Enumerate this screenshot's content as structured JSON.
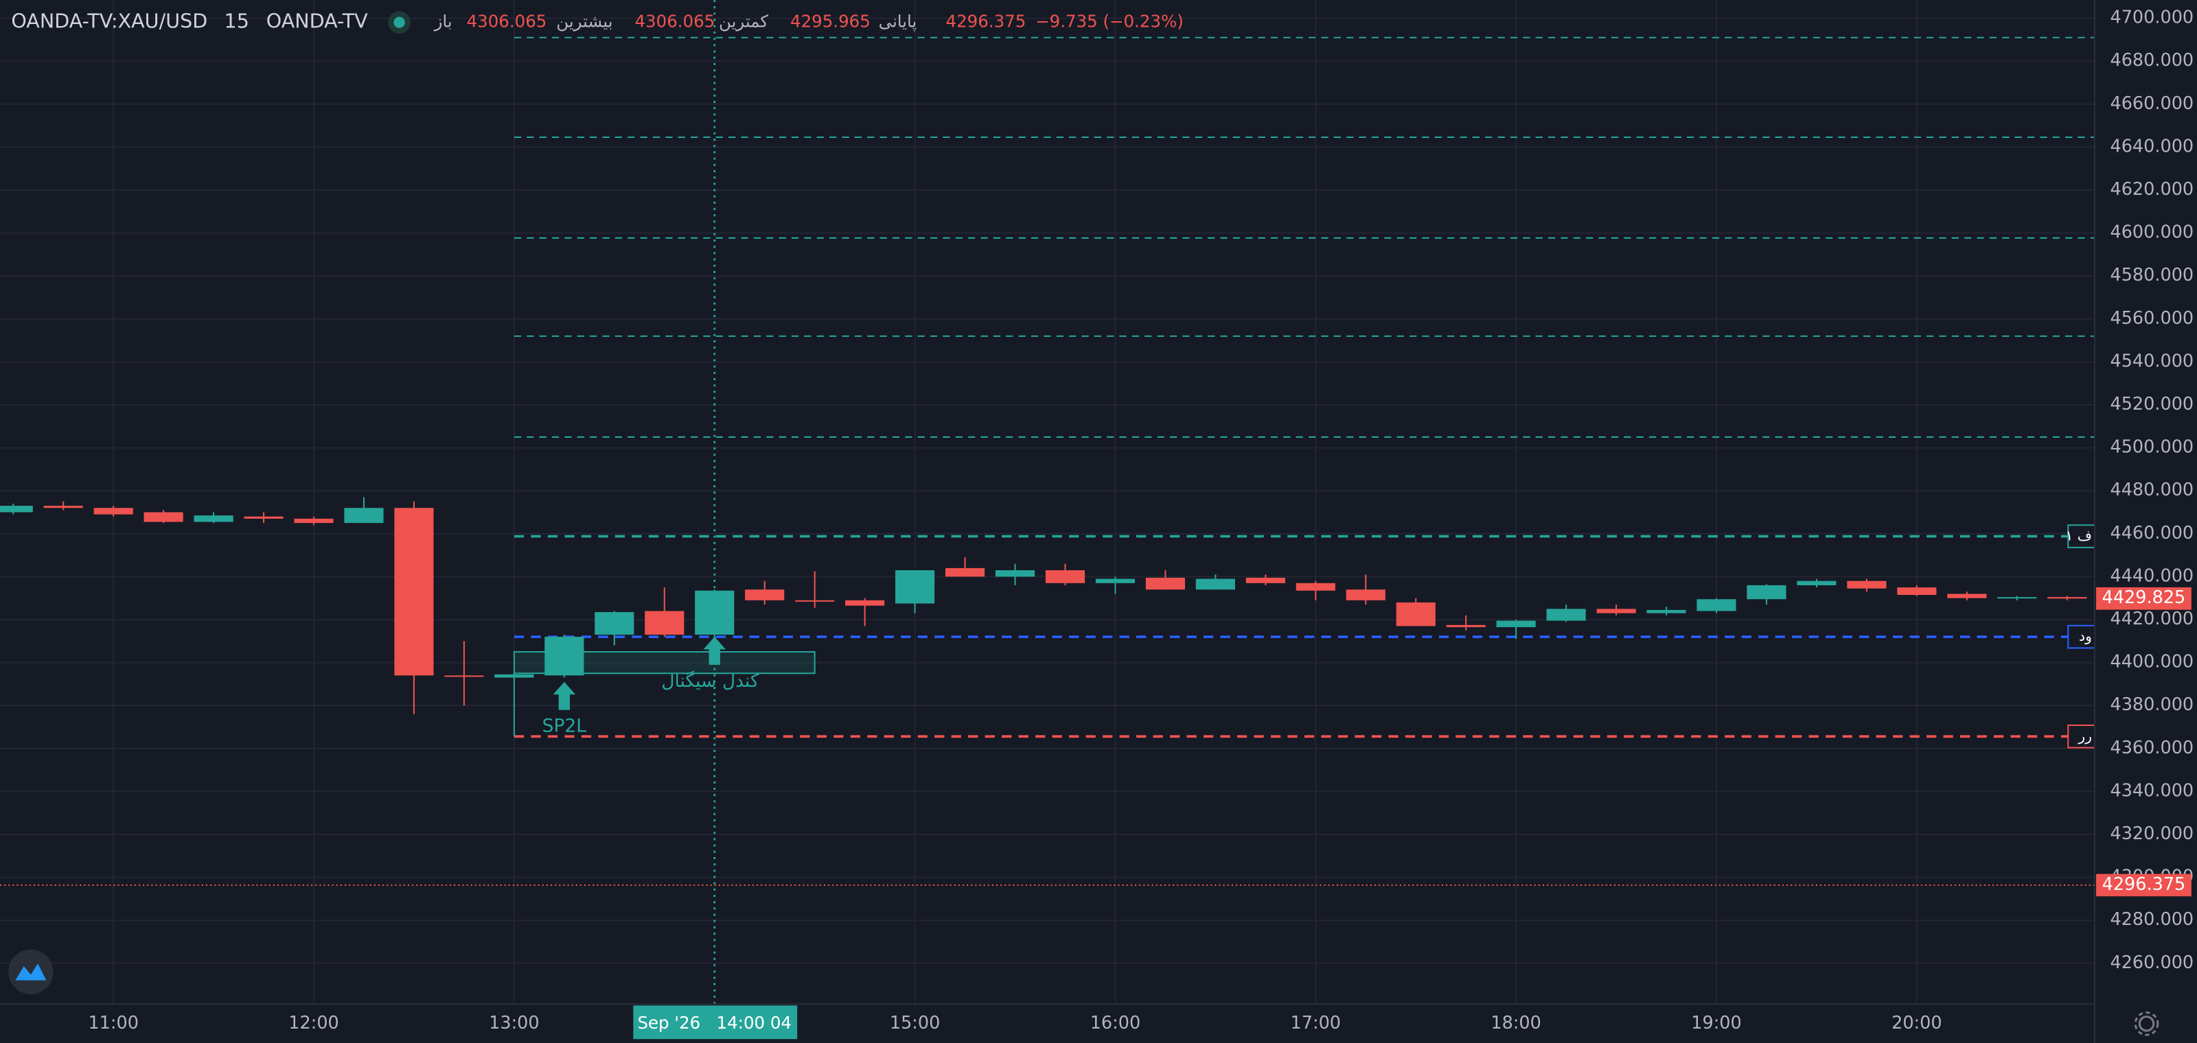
{
  "header": {
    "symbol": "OANDA-TV:XAU/USD",
    "interval": "15",
    "source": "OANDA-TV",
    "fields": [
      {
        "label": "باز",
        "value": "4306.065"
      },
      {
        "label": "بیشترین",
        "value": "4306.065"
      },
      {
        "label": "کمترین",
        "value": "4295.965"
      },
      {
        "label": "پایانی",
        "value": "4296.375"
      }
    ],
    "change": "−9.735 (−0.23%)"
  },
  "chart_data": {
    "type": "candlestick",
    "x": [
      10.5,
      10.75,
      11,
      11.25,
      11.5,
      11.75,
      12,
      12.25,
      12.5,
      12.75,
      13,
      13.25,
      13.5,
      13.75,
      14,
      14.25,
      14.5,
      14.75,
      15,
      15.25,
      15.5,
      15.75,
      16,
      16.25,
      16.5,
      16.75,
      17,
      17.25,
      17.5,
      17.75,
      18,
      18.25,
      18.5,
      18.75,
      19,
      19.25,
      19.5,
      19.75,
      20,
      20.25,
      20.5,
      20.75
    ],
    "open": [
      4470,
      4473,
      4472,
      4470,
      4465.5,
      4468,
      4467,
      4465,
      4472,
      4394,
      4393,
      4394,
      4413,
      4424,
      4413,
      4434,
      4429,
      4429,
      4427.5,
      4444,
      4440,
      4443,
      4437,
      4439.5,
      4434,
      4439.5,
      4437,
      4434,
      4428,
      4417.5,
      4416.5,
      4419.5,
      4425,
      4423,
      4424,
      4429.5,
      4436,
      4438,
      4435,
      4432,
      4430,
      4430.5
    ],
    "high": [
      4474,
      4475,
      4473,
      4471,
      4470,
      4470,
      4468,
      4477,
      4475,
      4410,
      4395,
      4413,
      4424,
      4435,
      4434,
      4438,
      4442.5,
      4430,
      4443,
      4449,
      4446,
      4446,
      4440,
      4443,
      4441,
      4441,
      4438,
      4441,
      4430,
      4422,
      4420,
      4427,
      4427,
      4426,
      4430,
      4436.5,
      4439,
      4439,
      4436,
      4433,
      4431,
      4431
    ],
    "low": [
      4469,
      4471,
      4468,
      4465,
      4465,
      4465,
      4464,
      4465,
      4376,
      4380,
      4393,
      4393,
      4408,
      4412,
      4412,
      4427,
      4425.5,
      4417,
      4423,
      4440,
      4436,
      4436,
      4432,
      4434,
      4434,
      4436,
      4429,
      4427,
      4417,
      4415,
      4411,
      4419,
      4422,
      4422,
      4423,
      4427,
      4435,
      4433,
      4431,
      4429,
      4429,
      4429
    ],
    "close": [
      4473,
      4472,
      4469,
      4465.5,
      4468.5,
      4467,
      4465,
      4472,
      4394,
      4393.5,
      4394.5,
      4412,
      4423.5,
      4413,
      4433.5,
      4429,
      4428.5,
      4426.5,
      4443,
      4440,
      4443,
      4437,
      4439,
      4434,
      4439,
      4437,
      4433.5,
      4429,
      4417,
      4416.5,
      4419.5,
      4425,
      4423,
      4424.5,
      4429.5,
      4436,
      4438,
      4434.5,
      4431.5,
      4430,
      4430.5,
      4429.8
    ],
    "up_color": "#26a69a",
    "down_color": "#ef5350",
    "xlim": [
      10.434,
      20.888
    ],
    "xticks": [
      {
        "value": 11,
        "label": "11:00"
      },
      {
        "value": 12,
        "label": "12:00"
      },
      {
        "value": 13,
        "label": "13:00"
      },
      {
        "value": 15,
        "label": "15:00"
      },
      {
        "value": 16,
        "label": "16:00"
      },
      {
        "value": 17,
        "label": "17:00"
      },
      {
        "value": 18,
        "label": "18:00"
      },
      {
        "value": 19,
        "label": "19:00"
      },
      {
        "value": 20,
        "label": "20:00"
      }
    ],
    "ylim": [
      4241,
      4708.5
    ],
    "yticks": [
      {
        "value": 4260,
        "label": "4260.000"
      },
      {
        "value": 4280,
        "label": "4280.000"
      },
      {
        "value": 4300,
        "label": "4300.000"
      },
      {
        "value": 4320,
        "label": "4320.000"
      },
      {
        "value": 4340,
        "label": "4340.000"
      },
      {
        "value": 4360,
        "label": "4360.000"
      },
      {
        "value": 4380,
        "label": "4380.000"
      },
      {
        "value": 4400,
        "label": "4400.000"
      },
      {
        "value": 4420,
        "label": "4420.000"
      },
      {
        "value": 4440,
        "label": "4440.000"
      },
      {
        "value": 4460,
        "label": "4460.000"
      },
      {
        "value": 4480,
        "label": "4480.000"
      },
      {
        "value": 4500,
        "label": "4500.000"
      },
      {
        "value": 4520,
        "label": "4520.000"
      },
      {
        "value": 4540,
        "label": "4540.000"
      },
      {
        "value": 4560,
        "label": "4560.000"
      },
      {
        "value": 4580,
        "label": "4580.000"
      },
      {
        "value": 4600,
        "label": "4600.000"
      },
      {
        "value": 4620,
        "label": "4620.000"
      },
      {
        "value": 4640,
        "label": "4640.000"
      },
      {
        "value": 4660,
        "label": "4660.000"
      },
      {
        "value": 4680,
        "label": "4680.000"
      },
      {
        "value": 4700,
        "label": "4700.000"
      }
    ],
    "grid": true,
    "last_price": {
      "value": 4429.825,
      "label": "4429.825",
      "color": "#ef5350"
    },
    "close_line": {
      "value": 4296.375,
      "label": "4296.375",
      "color": "#ef5350"
    },
    "levels_start": 13,
    "levels": [
      {
        "value": 4691,
        "color": "#26a69a"
      },
      {
        "value": 4644.6,
        "color": "#26a69a"
      },
      {
        "value": 4597.7,
        "color": "#26a69a"
      },
      {
        "value": 4552,
        "color": "#26a69a"
      },
      {
        "value": 4505,
        "color": "#26a69a"
      },
      {
        "value": 4458.8,
        "color": "#26a69a",
        "label": "ف ۱"
      },
      {
        "value": 4412,
        "color": "#2962ff",
        "label": "ود"
      },
      {
        "value": 4365.6,
        "color": "#ef5350",
        "label": "رر"
      }
    ],
    "box": {
      "x": [
        13,
        14.5
      ],
      "y": [
        4395,
        4405
      ],
      "color": "#26a69a"
    },
    "annotations": [
      {
        "text": "SP2L",
        "x": 13.25,
        "y": 4391
      },
      {
        "text": "کندل سیگنال",
        "x": 14,
        "y": 4412
      }
    ],
    "crosshair": {
      "x": 14,
      "label": "Sep '26   14:00 04"
    }
  }
}
